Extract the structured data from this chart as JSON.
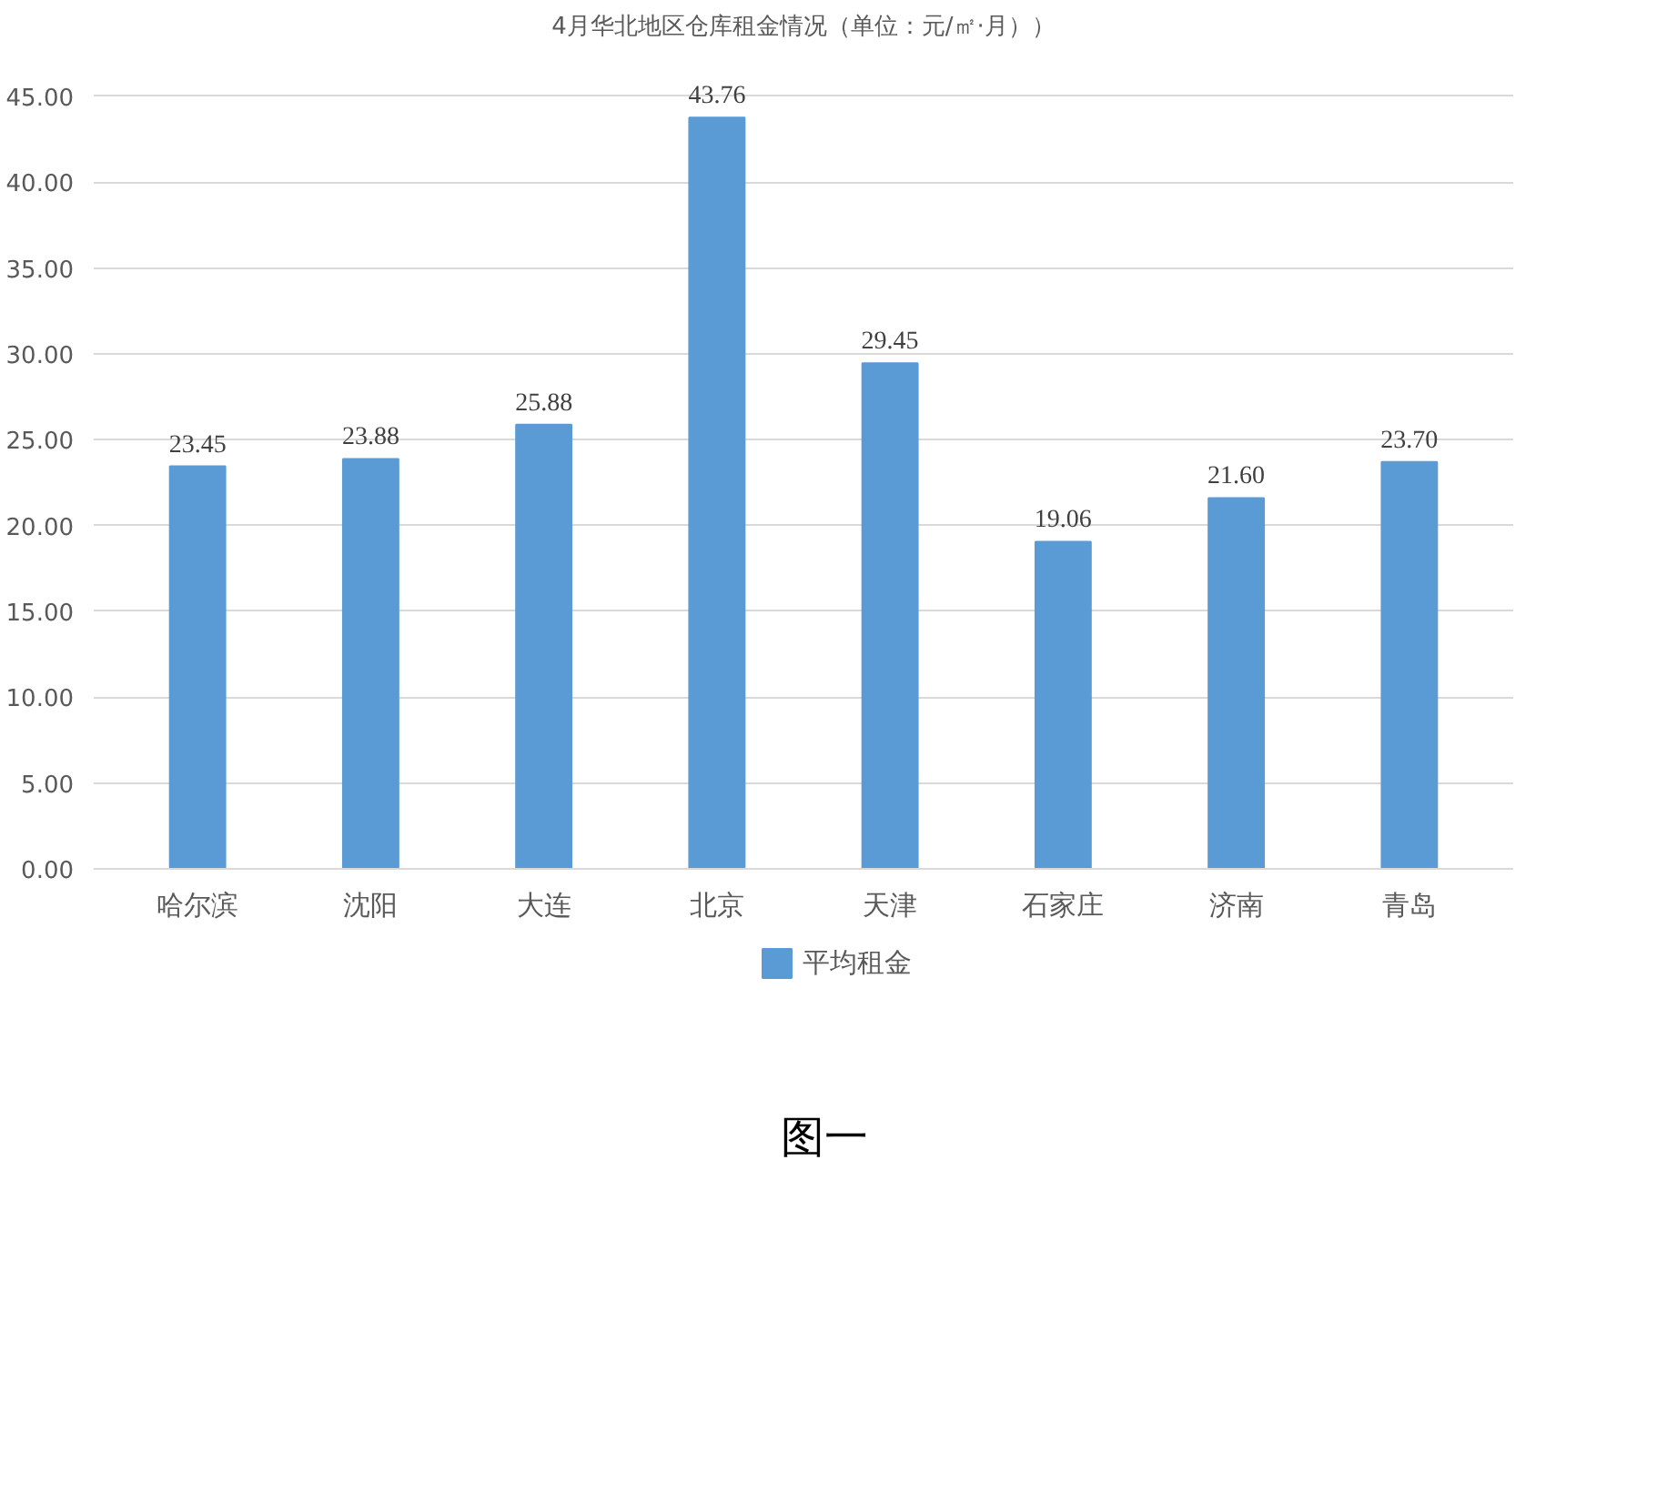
{
  "chart_data": {
    "type": "bar",
    "title": "4月华北地区仓库租金情况（单位：元/㎡·月））",
    "categories": [
      "哈尔滨",
      "沈阳",
      "大连",
      "北京",
      "天津",
      "石家庄",
      "济南",
      "青岛"
    ],
    "series": [
      {
        "name": "平均租金",
        "color": "#5b9bd5",
        "values": [
          23.45,
          23.88,
          25.88,
          43.76,
          29.45,
          19.06,
          21.6,
          23.7
        ],
        "value_labels": [
          "23.45",
          "23.88",
          "25.88",
          "43.76",
          "29.45",
          "19.06",
          "21.60",
          "23.70"
        ]
      }
    ],
    "ylim": [
      0,
      45
    ],
    "yticks": [
      {
        "value": 0,
        "label": "0.00"
      },
      {
        "value": 5,
        "label": "5.00"
      },
      {
        "value": 10,
        "label": "10.00"
      },
      {
        "value": 15,
        "label": "15.00"
      },
      {
        "value": 20,
        "label": "20.00"
      },
      {
        "value": 25,
        "label": "25.00"
      },
      {
        "value": 30,
        "label": "30.00"
      },
      {
        "value": 35,
        "label": "35.00"
      },
      {
        "value": 40,
        "label": "40.00"
      },
      {
        "value": 45,
        "label": "45.00"
      }
    ],
    "grid": "y",
    "legend": "bottom",
    "annotations": [
      "图一"
    ]
  }
}
